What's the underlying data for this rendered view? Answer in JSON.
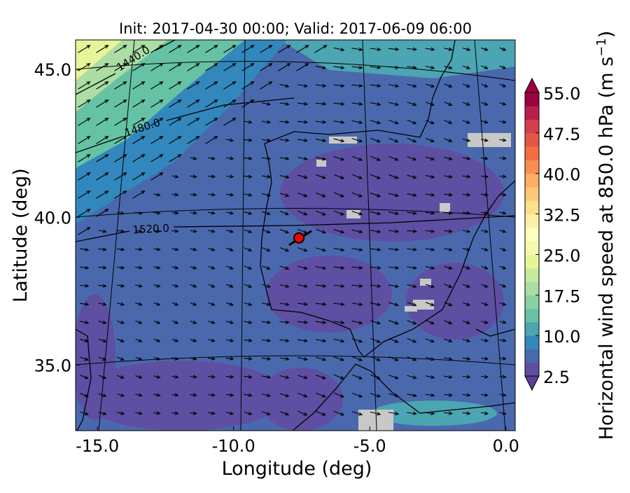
{
  "chart_data": {
    "type": "map",
    "title": "Init: 2017-04-30 00:00; Valid: 2017-06-09 06:00",
    "xlabel": "Longitude (deg)",
    "ylabel": "Latitude (deg)",
    "xlim": [
      -15.8,
      0.34
    ],
    "ylim": [
      32.78,
      46.0
    ],
    "xticks": [
      {
        "value": -15,
        "label": "-15.0"
      },
      {
        "value": -10,
        "label": "-10.0"
      },
      {
        "value": -5,
        "label": "-5.0"
      },
      {
        "value": 0,
        "label": "0.0"
      }
    ],
    "yticks": [
      {
        "value": 35,
        "label": "35.0"
      },
      {
        "value": 40,
        "label": "40.0"
      },
      {
        "value": 45,
        "label": "45.0"
      }
    ],
    "colorbar": {
      "label": "Horizontal wind speed at 850.0 hPa (m s",
      "label_sup": "−1",
      "label_end": ")",
      "lim": [
        2.5,
        55
      ],
      "ticks": [
        {
          "value": 2.5,
          "label": "2.5"
        },
        {
          "value": 10,
          "label": "10.0"
        },
        {
          "value": 17.5,
          "label": "17.5"
        },
        {
          "value": 25,
          "label": "25.0"
        },
        {
          "value": 32.5,
          "label": "32.5"
        },
        {
          "value": 40,
          "label": "40.0"
        },
        {
          "value": 47.5,
          "label": "47.5"
        },
        {
          "value": 55,
          "label": "55.0"
        }
      ],
      "colors": [
        "#5e4fa2",
        "#4a69ad",
        "#3288bd",
        "#4ca5b2",
        "#66c2a5",
        "#89d0a5",
        "#abdda4",
        "#c9e99e",
        "#e6f598",
        "#f3faad",
        "#ffffbf",
        "#feefa5",
        "#fee08b",
        "#fdc776",
        "#fdae61",
        "#f98e52",
        "#f46d43",
        "#e55649",
        "#d53e4f",
        "#b91f48",
        "#9e0142"
      ],
      "under_color": "#5a3f99",
      "over_color": "#9e0142"
    },
    "contour_labels": [
      "1440.0",
      "1480.0",
      "1520.0"
    ],
    "marker": {
      "lon": -7.6,
      "lat": 39.3,
      "color": "#ff0000"
    }
  }
}
